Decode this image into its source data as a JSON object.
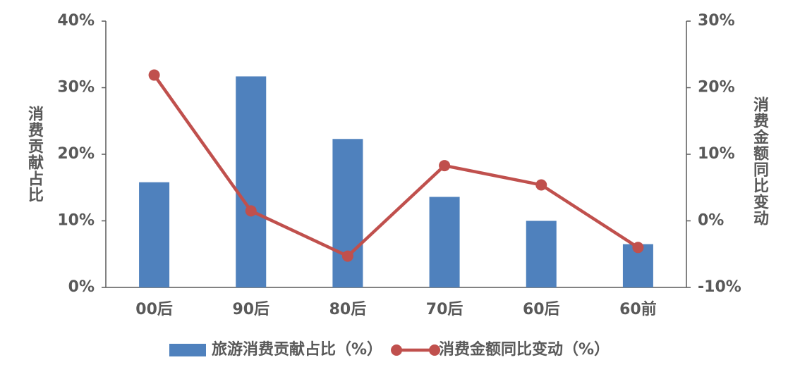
{
  "chart_data": {
    "type": "bar-line",
    "categories": [
      "00后",
      "90后",
      "80后",
      "70后",
      "60后",
      "60前"
    ],
    "ylabel": "消费贡献占比",
    "y2label": "消费金额同比变动",
    "ylim": [
      0,
      40
    ],
    "yticks": [
      {
        "value": 0,
        "label": "0%"
      },
      {
        "value": 10,
        "label": "10%"
      },
      {
        "value": 20,
        "label": "20%"
      },
      {
        "value": 30,
        "label": "30%"
      },
      {
        "value": 40,
        "label": "40%"
      }
    ],
    "y2lim": [
      -10,
      30
    ],
    "y2ticks": [
      {
        "value": -10,
        "label": "-10%"
      },
      {
        "value": 0,
        "label": "0%"
      },
      {
        "value": 10,
        "label": "10%"
      },
      {
        "value": 20,
        "label": "20%"
      },
      {
        "value": 30,
        "label": "30%"
      }
    ],
    "legend": "bottom",
    "series": [
      {
        "name": "旅游消费贡献占比（%）",
        "type": "bar",
        "color": "#4f81bd",
        "values": [
          15.8,
          31.7,
          22.3,
          13.6,
          10.0,
          6.5
        ]
      },
      {
        "name": "消费金额同比变动（%）",
        "type": "line",
        "axis": "y2",
        "color": "#c0504d",
        "values": [
          21.9,
          1.5,
          -5.3,
          8.3,
          5.4,
          -4.0
        ]
      }
    ]
  }
}
